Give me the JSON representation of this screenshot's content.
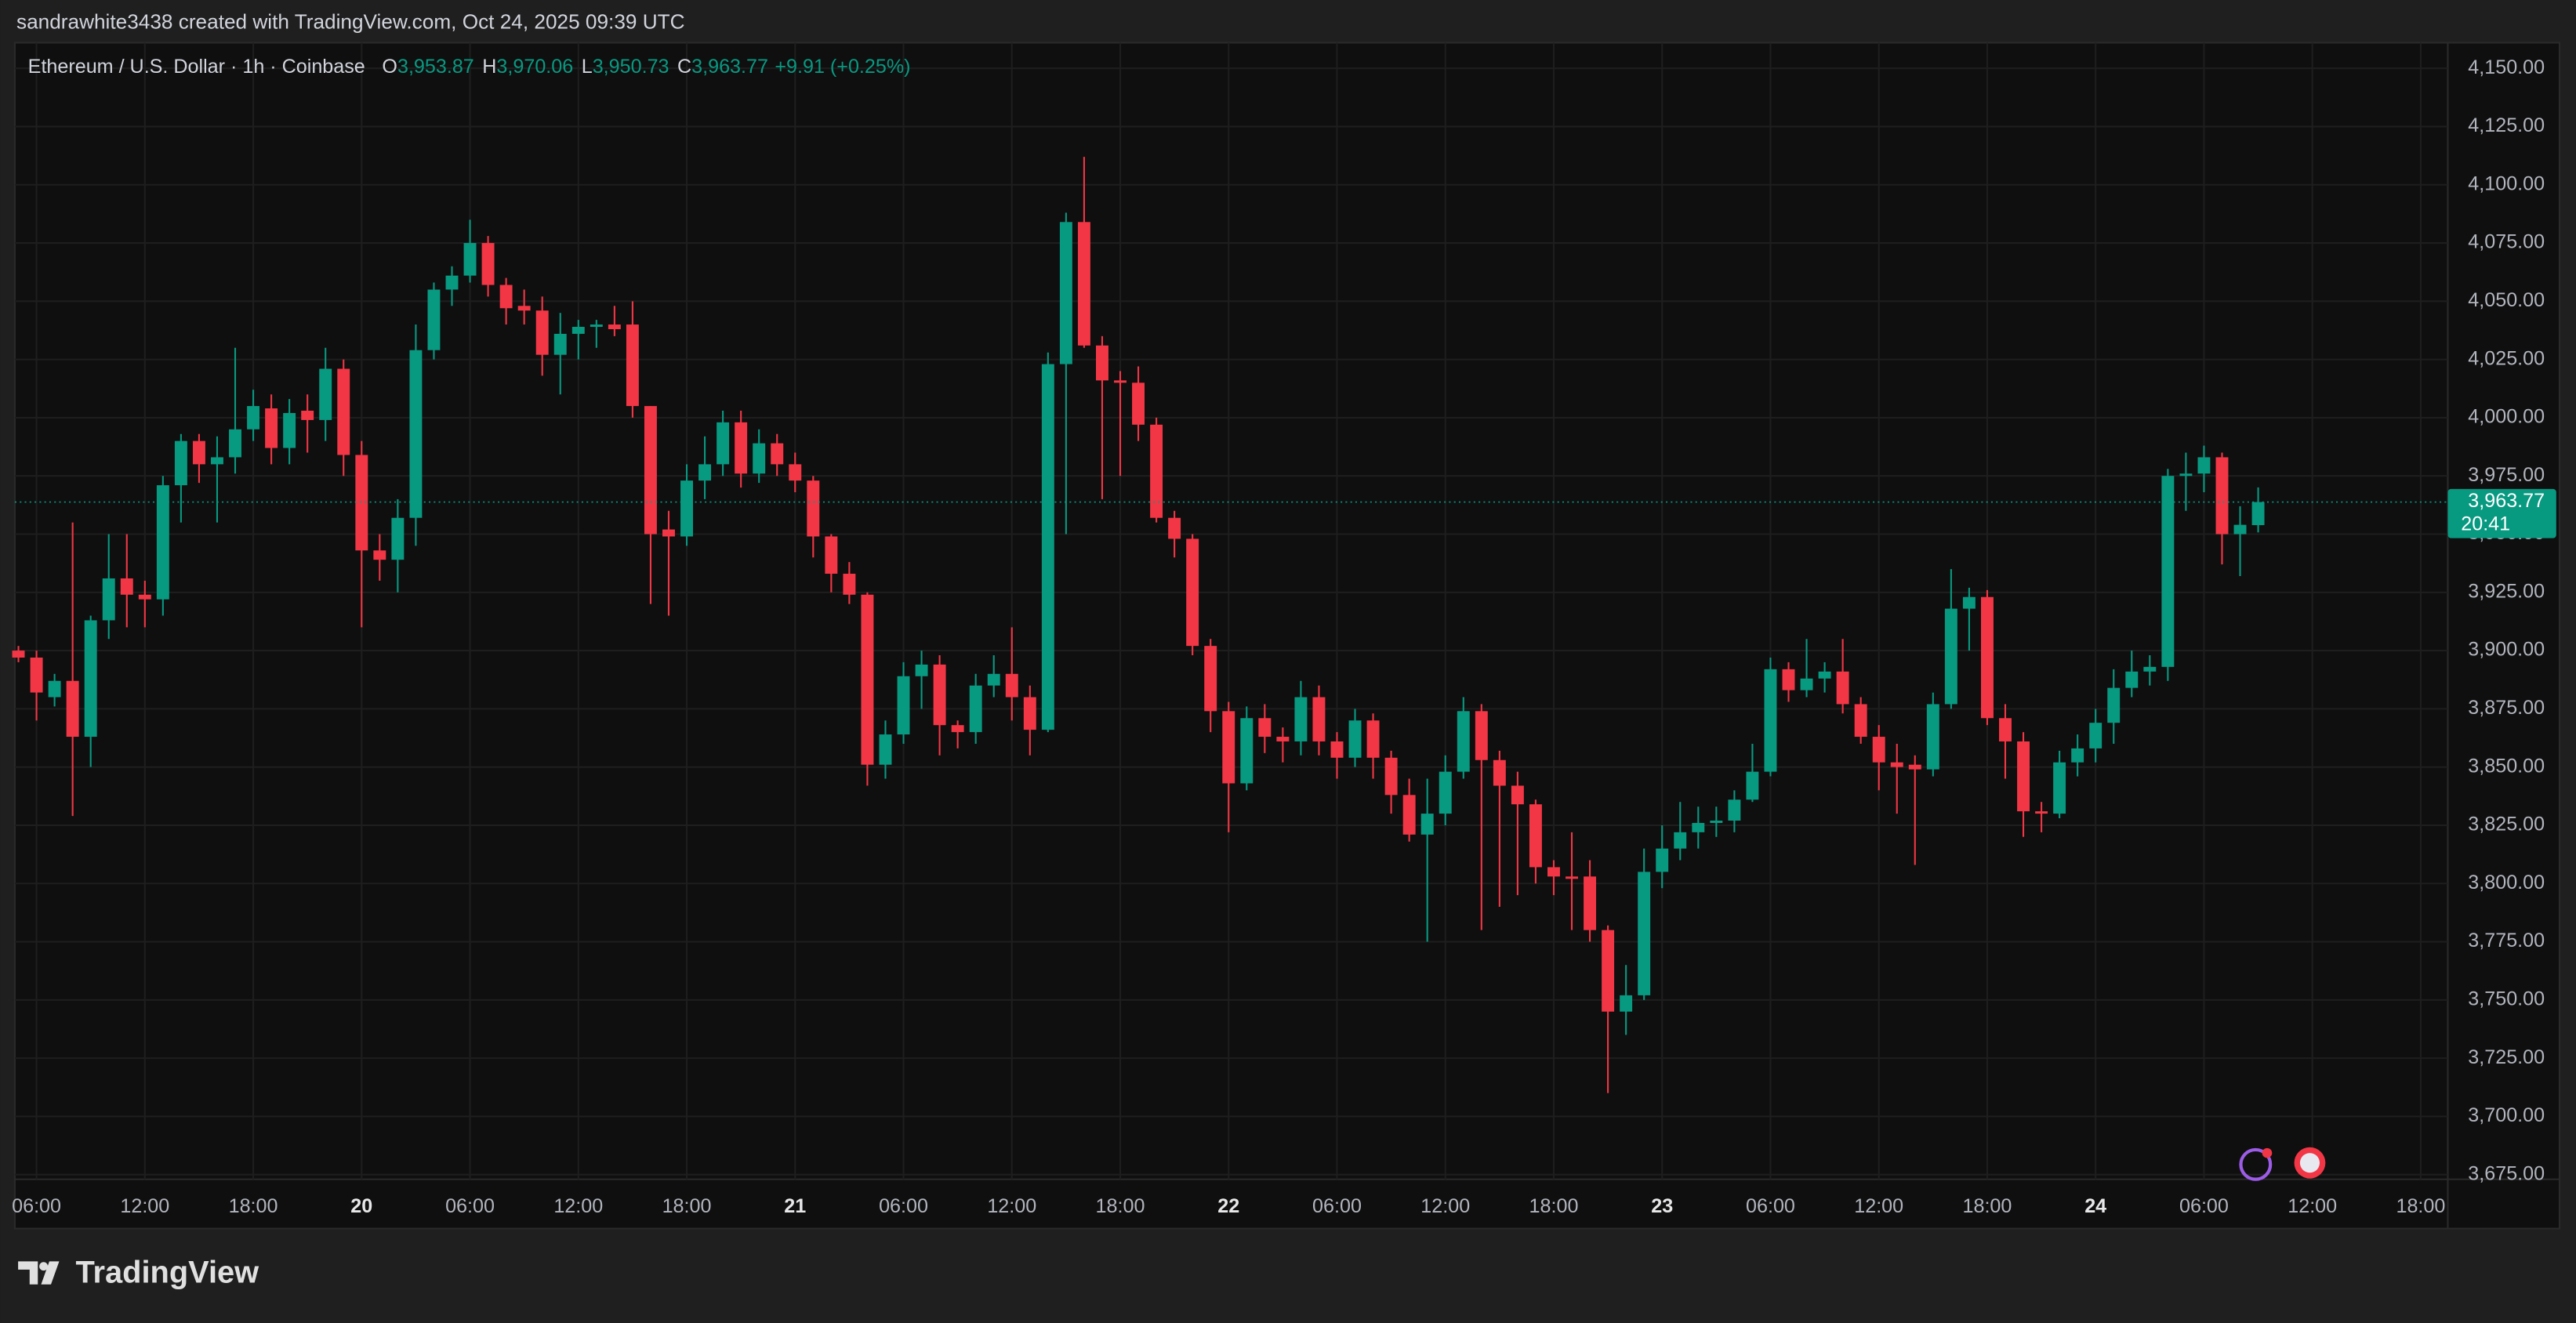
{
  "attribution": "sandrawhite3438 created with TradingView.com, Oct 24, 2025 09:39 UTC",
  "logo": "TradingView",
  "chart_data": {
    "type": "candlestick",
    "title": "Ethereum / U.S. Dollar · 1h · Coinbase",
    "ohlc_legend": [
      {
        "key": "O",
        "value": "3,953.87"
      },
      {
        "key": "H",
        "value": "3,970.06"
      },
      {
        "key": "L",
        "value": "3,950.73"
      },
      {
        "key": "C",
        "value": "3,963.77"
      }
    ],
    "change": "+9.91 (+0.25%)",
    "up_color": "#089981",
    "down_color": "#f23645",
    "grid": true,
    "x": [
      5,
      6,
      7,
      8,
      9,
      10,
      11,
      12,
      13,
      14,
      15,
      16,
      17,
      18,
      19,
      20,
      21,
      22,
      23,
      24,
      25,
      26,
      27,
      28,
      29,
      30,
      31,
      32,
      33,
      34,
      35,
      36,
      37,
      38,
      39,
      40,
      41,
      42,
      43,
      44,
      45,
      46,
      47,
      48,
      49,
      50,
      51,
      52,
      53,
      54,
      55,
      56,
      57,
      58,
      59,
      60,
      61,
      62,
      63,
      64,
      65,
      66,
      67,
      68,
      69,
      70,
      71,
      72,
      73,
      74,
      75,
      76,
      77,
      78,
      79,
      80,
      81,
      82,
      83,
      84,
      85,
      86,
      87,
      88,
      89,
      90,
      91,
      92,
      93,
      94,
      95,
      96,
      97,
      98,
      99,
      100,
      101,
      102,
      103,
      104,
      105,
      106,
      107,
      108,
      109,
      110,
      111,
      112,
      113,
      114,
      115,
      116,
      117,
      118,
      119,
      120,
      121,
      122,
      123,
      124,
      125,
      126,
      127,
      128,
      129
    ],
    "open": [
      3900,
      3897,
      3880,
      3887,
      3863,
      3913,
      3931,
      3924,
      3922,
      3971,
      3990,
      3980,
      3983,
      3995,
      4004,
      3987,
      4003,
      3999,
      4021,
      3984,
      3943,
      3939,
      3957,
      4029,
      4055,
      4061,
      4075,
      4057,
      4048,
      4046,
      4027,
      4036,
      4039,
      4040,
      4040,
      4005,
      3952,
      3949,
      3973,
      3980,
      3998,
      3976,
      3989,
      3980,
      3973,
      3949,
      3933,
      3924,
      3851,
      3864,
      3889,
      3894,
      3868,
      3865,
      3885,
      3890,
      3880,
      3866,
      4023,
      4084,
      4031,
      4016,
      4015,
      3997,
      3957,
      3948,
      3902,
      3874,
      3843,
      3871,
      3863,
      3861,
      3880,
      3861,
      3854,
      3870,
      3854,
      3838,
      3821,
      3830,
      3848,
      3874,
      3853,
      3842,
      3834,
      3807,
      3803,
      3803,
      3780,
      3745,
      3752,
      3805,
      3815,
      3822,
      3826,
      3827,
      3836,
      3848,
      3892,
      3883,
      3888,
      3891,
      3877,
      3863,
      3852,
      3851,
      3849,
      3877,
      3918,
      3923,
      3871,
      3861,
      3831,
      3830,
      3852,
      3858,
      3869,
      3884,
      3891,
      3893,
      3975,
      3976,
      3983,
      3950,
      3953.87
    ],
    "high": [
      3902,
      3900,
      3890,
      3955,
      3915,
      3950,
      3950,
      3930,
      3975,
      3993,
      3993,
      3992,
      4030,
      4012,
      4010,
      4008,
      4010,
      4030,
      4025,
      3990,
      3950,
      3965,
      4040,
      4058,
      4065,
      4085,
      4078,
      4060,
      4055,
      4052,
      4045,
      4042,
      4042,
      4048,
      4050,
      4005,
      3960,
      3980,
      3992,
      4003,
      4003,
      3995,
      3993,
      3985,
      3975,
      3950,
      3938,
      3925,
      3870,
      3895,
      3900,
      3898,
      3870,
      3890,
      3898,
      3910,
      3885,
      4028,
      4088,
      4112,
      4035,
      4020,
      4022,
      4000,
      3960,
      3950,
      3905,
      3878,
      3876,
      3877,
      3867,
      3887,
      3885,
      3865,
      3875,
      3873,
      3857,
      3845,
      3845,
      3855,
      3880,
      3877,
      3857,
      3848,
      3836,
      3810,
      3822,
      3810,
      3782,
      3765,
      3815,
      3825,
      3835,
      3833,
      3833,
      3840,
      3860,
      3897,
      3895,
      3905,
      3895,
      3905,
      3880,
      3868,
      3860,
      3855,
      3882,
      3935,
      3927,
      3926,
      3877,
      3865,
      3835,
      3857,
      3864,
      3875,
      3892,
      3900,
      3898,
      3978,
      3985,
      3988,
      3985,
      3962,
      3970.06
    ],
    "low": [
      3895,
      3870,
      3876,
      3829,
      3850,
      3905,
      3910,
      3910,
      3915,
      3955,
      3972,
      3955,
      3976,
      3990,
      3980,
      3980,
      3985,
      3990,
      3975,
      3910,
      3930,
      3925,
      3945,
      4025,
      4048,
      4058,
      4052,
      4040,
      4040,
      4018,
      4010,
      4025,
      4030,
      4035,
      4000,
      3920,
      3915,
      3945,
      3965,
      3975,
      3970,
      3972,
      3975,
      3968,
      3940,
      3925,
      3920,
      3842,
      3845,
      3860,
      3875,
      3855,
      3858,
      3860,
      3880,
      3870,
      3855,
      3865,
      3950,
      4030,
      3965,
      3975,
      3990,
      3955,
      3940,
      3898,
      3865,
      3822,
      3840,
      3856,
      3852,
      3855,
      3855,
      3845,
      3850,
      3845,
      3830,
      3818,
      3775,
      3825,
      3845,
      3780,
      3790,
      3795,
      3800,
      3795,
      3780,
      3775,
      3710,
      3735,
      3750,
      3798,
      3810,
      3815,
      3820,
      3822,
      3835,
      3846,
      3878,
      3880,
      3882,
      3873,
      3860,
      3840,
      3830,
      3808,
      3846,
      3875,
      3900,
      3868,
      3845,
      3820,
      3822,
      3828,
      3846,
      3852,
      3860,
      3880,
      3885,
      3887,
      3960,
      3968,
      3937,
      3932,
      3950.73
    ],
    "close": [
      3897,
      3882,
      3887,
      3863,
      3913,
      3931,
      3924,
      3922,
      3971,
      3990,
      3980,
      3983,
      3995,
      4005,
      3987,
      4002,
      3999,
      4021,
      3984,
      3943,
      3939,
      3957,
      4029,
      4055,
      4061,
      4075,
      4057,
      4047,
      4046,
      4027,
      4036,
      4039,
      4040,
      4038,
      4005,
      3950,
      3949,
      3973,
      3980,
      3998,
      3976,
      3989,
      3980,
      3973,
      3949,
      3933,
      3924,
      3851,
      3864,
      3889,
      3894,
      3868,
      3865,
      3885,
      3890,
      3880,
      3866,
      4023,
      4084,
      4031,
      4016,
      4015,
      3997,
      3957,
      3948,
      3902,
      3874,
      3843,
      3871,
      3863,
      3861,
      3880,
      3861,
      3854,
      3870,
      3854,
      3838,
      3821,
      3830,
      3848,
      3874,
      3853,
      3842,
      3834,
      3807,
      3803,
      3802,
      3780,
      3745,
      3752,
      3805,
      3815,
      3822,
      3826,
      3827,
      3836,
      3848,
      3892,
      3883,
      3888,
      3891,
      3877,
      3863,
      3852,
      3850,
      3849,
      3877,
      3918,
      3923,
      3871,
      3861,
      3831,
      3830,
      3852,
      3858,
      3869,
      3884,
      3891,
      3893,
      3975,
      3976,
      3983,
      3950,
      3954,
      3963.77
    ],
    "price_tag": {
      "value": 3963.77,
      "label": "3,963.77",
      "countdown": "20:41"
    },
    "xlim": [
      4.8,
      139.5
    ],
    "xticks": [
      {
        "value": 6,
        "label": "06:00"
      },
      {
        "value": 12,
        "label": "12:00"
      },
      {
        "value": 18,
        "label": "18:00"
      },
      {
        "value": 24,
        "label": "20"
      },
      {
        "value": 30,
        "label": "06:00"
      },
      {
        "value": 36,
        "label": "12:00"
      },
      {
        "value": 42,
        "label": "18:00"
      },
      {
        "value": 48,
        "label": "21"
      },
      {
        "value": 54,
        "label": "06:00"
      },
      {
        "value": 60,
        "label": "12:00"
      },
      {
        "value": 66,
        "label": "18:00"
      },
      {
        "value": 72,
        "label": "22"
      },
      {
        "value": 78,
        "label": "06:00"
      },
      {
        "value": 84,
        "label": "12:00"
      },
      {
        "value": 90,
        "label": "18:00"
      },
      {
        "value": 96,
        "label": "23"
      },
      {
        "value": 102,
        "label": "06:00"
      },
      {
        "value": 108,
        "label": "12:00"
      },
      {
        "value": 114,
        "label": "18:00"
      },
      {
        "value": 120,
        "label": "24"
      },
      {
        "value": 126,
        "label": "06:00"
      },
      {
        "value": 132,
        "label": "12:00"
      },
      {
        "value": 138,
        "label": "18:00"
      }
    ],
    "ylim": [
      3673,
      4161
    ],
    "yticks": [
      {
        "value": 3675,
        "label": "3,675.00"
      },
      {
        "value": 3700,
        "label": "3,700.00"
      },
      {
        "value": 3725,
        "label": "3,725.00"
      },
      {
        "value": 3750,
        "label": "3,750.00"
      },
      {
        "value": 3775,
        "label": "3,775.00"
      },
      {
        "value": 3800,
        "label": "3,800.00"
      },
      {
        "value": 3825,
        "label": "3,825.00"
      },
      {
        "value": 3850,
        "label": "3,850.00"
      },
      {
        "value": 3875,
        "label": "3,875.00"
      },
      {
        "value": 3900,
        "label": "3,900.00"
      },
      {
        "value": 3925,
        "label": "3,925.00"
      },
      {
        "value": 3950,
        "label": "3,950.00"
      },
      {
        "value": 3975,
        "label": "3,975.00"
      },
      {
        "value": 4000,
        "label": "4,000.00"
      },
      {
        "value": 4025,
        "label": "4,025.00"
      },
      {
        "value": 4050,
        "label": "4,050.00"
      },
      {
        "value": 4075,
        "label": "4,075.00"
      },
      {
        "value": 4100,
        "label": "4,100.00"
      },
      {
        "value": 4125,
        "label": "4,125.00"
      },
      {
        "value": 4150,
        "label": "4,150.00"
      }
    ]
  }
}
